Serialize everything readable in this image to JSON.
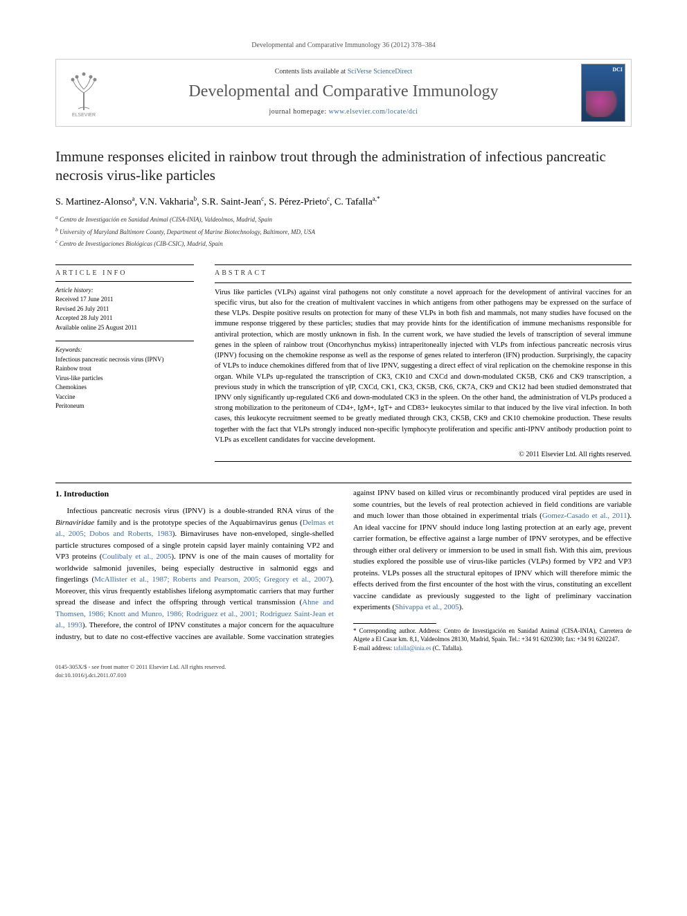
{
  "citation": "Developmental and Comparative Immunology 36 (2012) 378–384",
  "masthead": {
    "contents_prefix": "Contents lists available at ",
    "contents_link": "SciVerse ScienceDirect",
    "journal": "Developmental and Comparative Immunology",
    "homepage_prefix": "journal homepage: ",
    "homepage_url": "www.elsevier.com/locate/dci",
    "publisher_logo_label": "ELSEVIER",
    "cover_badge": "DCI"
  },
  "article": {
    "title": "Immune responses elicited in rainbow trout through the administration of infectious pancreatic necrosis virus-like particles",
    "authors_html": "S. Martinez-Alonso<sup>a</sup>, V.N. Vakharia<sup>b</sup>, S.R. Saint-Jean<sup>c</sup>, S. Pérez-Prieto<sup>c</sup>, C. Tafalla<sup>a,*</sup>",
    "affiliations": [
      "a Centro de Investigación en Sanidad Animal (CISA-INIA), Valdeolmos, Madrid, Spain",
      "b University of Maryland Baltimore County, Department of Marine Biotechnology, Baltimore, MD, USA",
      "c Centro de Investigaciones Biológicas (CIB-CSIC), Madrid, Spain"
    ]
  },
  "info": {
    "heading": "ARTICLE INFO",
    "history_label": "Article history:",
    "history": [
      "Received 17 June 2011",
      "Revised 26 July 2011",
      "Accepted 28 July 2011",
      "Available online 25 August 2011"
    ],
    "keywords_label": "Keywords:",
    "keywords": [
      "Infectious pancreatic necrosis virus (IPNV)",
      "Rainbow trout",
      "Virus-like particles",
      "Chemokines",
      "Vaccine",
      "Peritoneum"
    ]
  },
  "abstract": {
    "heading": "ABSTRACT",
    "text": "Virus like particles (VLPs) against viral pathogens not only constitute a novel approach for the development of antiviral vaccines for an specific virus, but also for the creation of multivalent vaccines in which antigens from other pathogens may be expressed on the surface of these VLPs. Despite positive results on protection for many of these VLPs in both fish and mammals, not many studies have focused on the immune response triggered by these particles; studies that may provide hints for the identification of immune mechanisms responsible for antiviral protection, which are mostly unknown in fish. In the current work, we have studied the levels of transcription of several immune genes in the spleen of rainbow trout (Oncorhynchus mykiss) intraperitoneally injected with VLPs from infectious pancreatic necrosis virus (IPNV) focusing on the chemokine response as well as the response of genes related to interferon (IFN) production. Surprisingly, the capacity of VLPs to induce chemokines differed from that of live IPNV, suggesting a direct effect of viral replication on the chemokine response in this organ. While VLPs up-regulated the transcription of CK3, CK10 and CXCd and down-modulated CK5B, CK6 and CK9 transcription, a previous study in which the transcription of γIP, CXCd, CK1, CK3, CK5B, CK6, CK7A, CK9 and CK12 had been studied demonstrated that IPNV only significantly up-regulated CK6 and down-modulated CK3 in the spleen. On the other hand, the administration of VLPs produced a strong mobilization to the peritoneum of CD4+, IgM+, IgT+ and CD83+ leukocytes similar to that induced by the live viral infection. In both cases, this leukocyte recruitment seemed to be greatly mediated through CK3, CK5B, CK9 and CK10 chemokine production. These results together with the fact that VLPs strongly induced non-specific lymphocyte proliferation and specific anti-IPNV antibody production point to VLPs as excellent candidates for vaccine development.",
    "copyright": "© 2011 Elsevier Ltd. All rights reserved."
  },
  "body": {
    "section_heading": "1. Introduction",
    "p1_a": "Infectious pancreatic necrosis virus (IPNV) is a double-stranded RNA virus of the ",
    "p1_genus1": "Birnaviridae",
    "p1_b": " family and is the prototype species of the Aquabirnavirus genus (",
    "p1_ref1": "Delmas et al., 2005; Dobos and Roberts, 1983",
    "p1_c": "). Birnaviruses have non-enveloped, single-shelled particle structures composed of a single protein capsid layer mainly containing VP2 and VP3 proteins (",
    "p1_ref2": "Coulibaly et al., 2005",
    "p1_d": "). IPNV is one of the main causes of mortality for worldwide salmonid juveniles, being especially destructive in salmonid eggs and fingerlings (",
    "p1_ref3": "McAllister et al., 1987; Roberts and Pearson, 2005; Gregory et al., 2007",
    "p1_e": "). Moreover, this virus frequently establishes lifelong asymptomatic carriers that may further spread the disease and infect ",
    "p2_a": "the offspring through vertical transmission (",
    "p2_ref1": "Ahne and Thomsen, 1986; Knott and Munro, 1986; Rodriguez et al., 2001; Rodriguez Saint-Jean et al., 1993",
    "p2_b": "). Therefore, the control of IPNV constitutes a major concern for the aquaculture industry, but to date no cost-effective vaccines are available. Some vaccination strategies against IPNV based on killed virus or recombinantly produced viral peptides are used in some countries, but the levels of real protection achieved in field conditions are variable and much lower than those obtained in experimental trials (",
    "p2_ref2": "Gomez-Casado et al., 2011",
    "p2_c": "). An ideal vaccine for IPNV should induce long lasting protection at an early age, prevent carrier formation, be effective against a large number of IPNV serotypes, and be effective through either oral delivery or immersion to be used in small fish. With this aim, previous studies explored the possible use of virus-like particles (VLPs) formed by VP2 and VP3 proteins. VLPs posses all the structural epitopes of IPNV which will therefore mimic the effects derived from the first encounter of the host with the virus, constituting an excellent vaccine candidate as previously suggested to the light of preliminary vaccination experiments (",
    "p2_ref3": "Shivappa et al., 2005",
    "p2_d": ")."
  },
  "footnote": {
    "corr": "* Corresponding author. Address: Centro de Investigación en Sanidad Animal (CISA-INIA), Carretera de Algete a El Casar km. 8,1, Valdeolmos 28130, Madrid, Spain. Tel.: +34 91 6202300; fax: +34 91 6202247.",
    "email_label": "E-mail address: ",
    "email": "tafalla@inia.es",
    "email_who": " (C. Tafalla)."
  },
  "bottom": {
    "issn": "0145-305X/$ - see front matter © 2011 Elsevier Ltd. All rights reserved.",
    "doi": "doi:10.1016/j.dci.2011.07.010"
  },
  "colors": {
    "link": "#3a6aa8",
    "text": "#000000",
    "muted": "#555555"
  }
}
